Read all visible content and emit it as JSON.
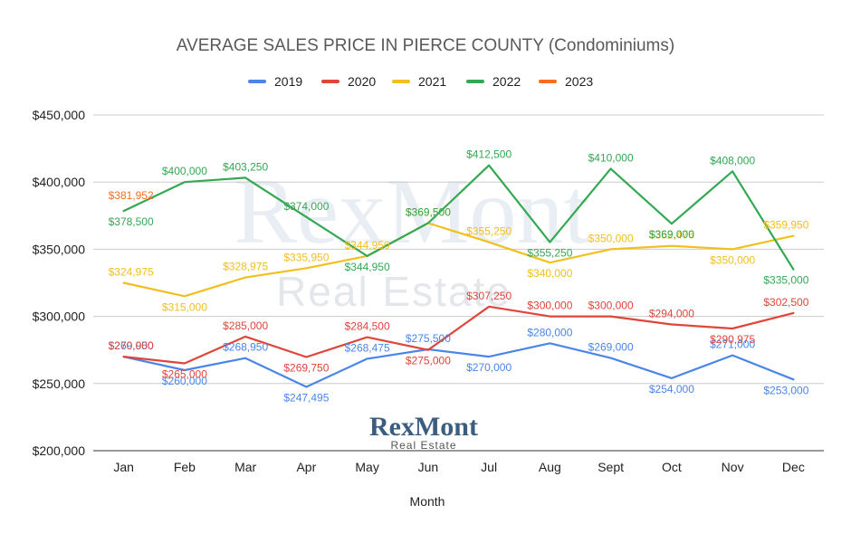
{
  "chart_data": {
    "type": "line",
    "title": "AVERAGE SALES PRICE IN PIERCE COUNTY (Condominiums)",
    "xlabel": "Month",
    "ylabel": "",
    "categories": [
      "Jan",
      "Feb",
      "Mar",
      "Apr",
      "May",
      "Jun",
      "Jul",
      "Aug",
      "Sept",
      "Oct",
      "Nov",
      "Dec"
    ],
    "ylim": [
      200000,
      450000
    ],
    "yticks": [
      "$200,000",
      "$250,000",
      "$300,000",
      "$350,000",
      "$400,000",
      "$450,000"
    ],
    "ytick_values": [
      200000,
      250000,
      300000,
      350000,
      400000,
      450000
    ],
    "grid": "horizontal",
    "legend_position": "top",
    "series": [
      {
        "name": "2019",
        "color": "#4a86e8",
        "values": [
          269950,
          260000,
          268950,
          247495,
          268475,
          275500,
          270000,
          280000,
          269000,
          254000,
          271000,
          253000
        ],
        "labels": [
          "$269,950",
          "$260,000",
          "$268,950",
          "$247,495",
          "$268,475",
          "$275,500",
          "$270,000",
          "$280,000",
          "$269,000",
          "$254,000",
          "$271,000",
          "$253,000"
        ]
      },
      {
        "name": "2020",
        "color": "#e0453a",
        "values": [
          270000,
          265000,
          285000,
          269750,
          284500,
          275000,
          307250,
          300000,
          300000,
          294000,
          290975,
          302500
        ],
        "labels": [
          "$270,000",
          "$265,000",
          "$285,000",
          "$269,750",
          "$284,500",
          "$275,000",
          "$307,250",
          "$300,000",
          "$300,000",
          "$294,000",
          "$290,975",
          "$302,500"
        ]
      },
      {
        "name": "2021",
        "color": "#f1bf1f",
        "values": [
          324975,
          315000,
          328975,
          335950,
          344950,
          369500,
          355250,
          340000,
          350000,
          352475,
          350000,
          359950
        ],
        "labels": [
          "$324,975",
          "$315,000",
          "$328,975",
          "$335,950",
          "$344,950",
          "$369,500",
          "$355,250",
          "$340,000",
          "$350,000",
          "$352,475",
          "$350,000",
          "$359,950"
        ]
      },
      {
        "name": "2022",
        "color": "#34a853",
        "values": [
          378500,
          400000,
          403250,
          374000,
          344950,
          369500,
          412500,
          355250,
          410000,
          369000,
          408000,
          335000
        ],
        "labels": [
          "$378,500",
          "$400,000",
          "$403,250",
          "$374,000",
          "$344,950",
          "$369,500",
          "$412,500",
          "$355,250",
          "$410,000",
          "$369,000",
          "$408,000",
          "$335,000"
        ]
      },
      {
        "name": "2023",
        "color": "#fa6d1e",
        "values": [
          381952,
          null,
          null,
          null,
          null,
          null,
          null,
          null,
          null,
          null,
          null,
          null
        ],
        "labels": [
          "$381,952",
          "",
          "",
          "",
          "",
          "",
          "",
          "",
          "",
          "",
          "",
          ""
        ]
      }
    ]
  },
  "watermark": {
    "line1": "RexMont",
    "line2": "Real Estate"
  },
  "logo": {
    "line1": "RexMont",
    "line2": "Real Estate"
  }
}
